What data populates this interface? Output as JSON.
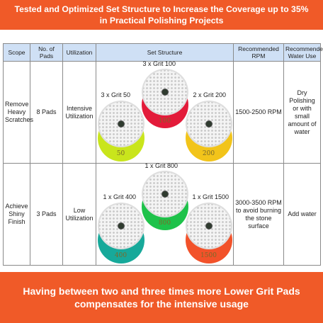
{
  "header": {
    "line1": "Tested and Optimized Set Structure to Increase the Coverage up to 35%",
    "line2": "in Practical Polishing Projects"
  },
  "table": {
    "columns": [
      "Scope",
      "No. of Pads",
      "Utilization",
      "Set Structure",
      "Recommended RPM",
      "Recommended Water Use"
    ],
    "rows": [
      {
        "scope": "Remove Heavy Scratches",
        "pads": "8 Pads",
        "utilization": "Intensive Utilization",
        "rpm": "1500-2500 RPM",
        "water": "Dry Polishing or with small amount of water",
        "set": [
          {
            "label": "3 x Grit 50",
            "grit": "50",
            "color": "#c9e51c"
          },
          {
            "label": "3 x Grit 100",
            "grit": "100",
            "color": "#e31b3a"
          },
          {
            "label": "2 x Grit 200",
            "grit": "200",
            "color": "#f2c41a"
          }
        ]
      },
      {
        "scope": "Achieve Shiny Finish",
        "pads": "3 Pads",
        "utilization": "Low Utilization",
        "rpm": "3000-3500 RPM to avoid burning the stone surface",
        "water": "Add water",
        "set": [
          {
            "label": "1 x Grit 400",
            "grit": "400",
            "color": "#17a99a"
          },
          {
            "label": "1 x Grit 800",
            "grit": "800",
            "color": "#1ec24a"
          },
          {
            "label": "1 x Grit 1500",
            "grit": "1500",
            "color": "#f2522a"
          }
        ]
      }
    ]
  },
  "footer": {
    "line1": "Having between two and three times more Lower Grit Pads",
    "line2": "compensates for the intensive usage"
  }
}
